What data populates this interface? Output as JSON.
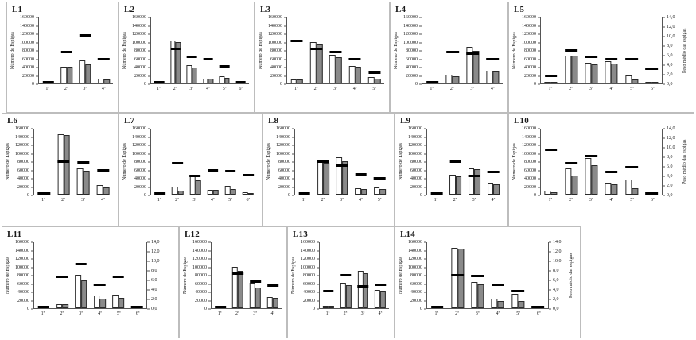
{
  "axes": {
    "left_label": "Número de Espigas",
    "right_label": "Peso médio das espigas",
    "left_ticks": [
      "160000",
      "140000",
      "120000",
      "100000",
      "80000",
      "60000",
      "40000",
      "20000",
      "0"
    ],
    "right_ticks": [
      "14,0",
      "12,0",
      "10,0",
      "8,0",
      "6,0",
      "4,0",
      "2,0",
      "0,0"
    ],
    "left_max": 160000,
    "right_max": 14
  },
  "colors": {
    "white_bar": "#ffffff",
    "gray_bar": "#8a8a8a",
    "bar_border": "#2a2a2a",
    "dash_marker": "#000000",
    "axis_line": "#555555",
    "panel_border": "#bdbdbd"
  },
  "chart_data": [
    {
      "id": "L1",
      "type": "bar",
      "title": "L1",
      "categories": [
        "1ª",
        "2ª",
        "3ª",
        "4ª"
      ],
      "ylim": [
        0,
        160000
      ],
      "y2lim": [
        0,
        14
      ],
      "right_axis": false,
      "right_label_shown": false,
      "series": [
        {
          "name": "white_bars",
          "values": [
            0,
            40000,
            55000,
            12000
          ]
        },
        {
          "name": "gray_bars",
          "values": [
            0,
            40000,
            46000,
            9000
          ]
        },
        {
          "name": "peso_medio_dash",
          "axis": "secondary",
          "values": [
            0.1,
            6.6,
            10.2,
            5.0
          ]
        }
      ]
    },
    {
      "id": "L2",
      "type": "bar",
      "title": "L2",
      "categories": [
        "1ª",
        "2ª",
        "3ª",
        "4ª",
        "5ª",
        "6ª"
      ],
      "ylim": [
        0,
        160000
      ],
      "y2lim": [
        0,
        14
      ],
      "right_axis": false,
      "right_label_shown": false,
      "series": [
        {
          "name": "white_bars",
          "values": [
            0,
            105000,
            44000,
            12000,
            17000,
            0
          ]
        },
        {
          "name": "gray_bars",
          "values": [
            0,
            100000,
            38000,
            11000,
            13000,
            0
          ]
        },
        {
          "name": "peso_medio_dash",
          "axis": "secondary",
          "values": [
            0.1,
            7.2,
            5.6,
            5.0,
            3.5,
            0.1
          ]
        }
      ]
    },
    {
      "id": "L3",
      "type": "bar",
      "title": "L3",
      "categories": [
        "1ª",
        "2ª",
        "3ª",
        "4ª",
        "5ª"
      ],
      "ylim": [
        0,
        160000
      ],
      "y2lim": [
        0,
        14
      ],
      "right_axis": false,
      "right_label_shown": false,
      "series": [
        {
          "name": "white_bars",
          "values": [
            10000,
            101000,
            70000,
            43000,
            15000
          ]
        },
        {
          "name": "gray_bars",
          "values": [
            9000,
            95000,
            63000,
            41000,
            12000
          ]
        },
        {
          "name": "peso_medio_dash",
          "axis": "secondary",
          "values": [
            8.9,
            7.2,
            6.6,
            5.0,
            2.2
          ]
        }
      ]
    },
    {
      "id": "L4",
      "type": "bar",
      "title": "L4",
      "categories": [
        "1ª",
        "2ª",
        "3ª",
        "4ª"
      ],
      "ylim": [
        0,
        160000
      ],
      "y2lim": [
        0,
        14
      ],
      "right_axis": false,
      "right_label_shown": false,
      "series": [
        {
          "name": "white_bars",
          "values": [
            0,
            22000,
            88000,
            31000
          ]
        },
        {
          "name": "gray_bars",
          "values": [
            0,
            17000,
            79000,
            29000
          ]
        },
        {
          "name": "peso_medio_dash",
          "axis": "secondary",
          "values": [
            0.2,
            6.5,
            6.2,
            5.0
          ]
        }
      ]
    },
    {
      "id": "L5",
      "type": "bar",
      "title": "L5",
      "categories": [
        "1ª",
        "2ª",
        "3ª",
        "4ª",
        "5ª",
        "6ª"
      ],
      "ylim": [
        0,
        160000
      ],
      "y2lim": [
        0,
        14
      ],
      "right_axis": true,
      "right_label_shown": true,
      "series": [
        {
          "name": "white_bars",
          "values": [
            4000,
            68000,
            50000,
            54000,
            19000,
            4000
          ]
        },
        {
          "name": "gray_bars",
          "values": [
            4000,
            68000,
            46000,
            48000,
            10000,
            4000
          ]
        },
        {
          "name": "peso_medio_dash",
          "axis": "secondary",
          "values": [
            1.5,
            6.9,
            5.6,
            5.1,
            5.0,
            3.1
          ]
        }
      ]
    },
    {
      "id": "L6",
      "type": "bar",
      "title": "L6",
      "categories": [
        "1ª",
        "2ª",
        "3ª",
        "4ª"
      ],
      "ylim": [
        0,
        160000
      ],
      "y2lim": [
        0,
        14
      ],
      "right_axis": false,
      "right_label_shown": false,
      "series": [
        {
          "name": "white_bars",
          "values": [
            0,
            146000,
            63000,
            24000
          ]
        },
        {
          "name": "gray_bars",
          "values": [
            0,
            144000,
            57000,
            18000
          ]
        },
        {
          "name": "peso_medio_dash",
          "axis": "secondary",
          "values": [
            0.1,
            7.0,
            6.7,
            5.0
          ]
        }
      ]
    },
    {
      "id": "L7",
      "type": "bar",
      "title": "L7",
      "categories": [
        "1ª",
        "2ª",
        "3ª",
        "4ª",
        "5ª",
        "6ª"
      ],
      "ylim": [
        0,
        160000
      ],
      "y2lim": [
        0,
        14
      ],
      "right_axis": false,
      "right_label_shown": false,
      "series": [
        {
          "name": "white_bars",
          "values": [
            0,
            19000,
            44000,
            12000,
            21000,
            6000
          ]
        },
        {
          "name": "gray_bars",
          "values": [
            0,
            10000,
            35000,
            11000,
            13000,
            3000
          ]
        },
        {
          "name": "peso_medio_dash",
          "axis": "secondary",
          "values": [
            0.1,
            6.5,
            3.9,
            5.1,
            4.9,
            4.0
          ]
        }
      ]
    },
    {
      "id": "L8",
      "type": "bar",
      "title": "L8",
      "categories": [
        "1ª",
        "2ª",
        "3ª",
        "4ª",
        "5ª"
      ],
      "ylim": [
        0,
        160000
      ],
      "y2lim": [
        0,
        14
      ],
      "right_axis": false,
      "right_label_shown": false,
      "series": [
        {
          "name": "white_bars",
          "values": [
            0,
            80000,
            90000,
            15000,
            17000
          ]
        },
        {
          "name": "gray_bars",
          "values": [
            0,
            78000,
            81000,
            14000,
            14000
          ]
        },
        {
          "name": "peso_medio_dash",
          "axis": "secondary",
          "values": [
            0.1,
            7.0,
            6.0,
            4.3,
            3.4
          ]
        }
      ]
    },
    {
      "id": "L9",
      "type": "bar",
      "title": "L9",
      "categories": [
        "1ª",
        "2ª",
        "3ª",
        "4ª"
      ],
      "ylim": [
        0,
        160000
      ],
      "y2lim": [
        0,
        14
      ],
      "right_axis": false,
      "right_label_shown": false,
      "series": [
        {
          "name": "white_bars",
          "values": [
            0,
            48000,
            64000,
            28000
          ]
        },
        {
          "name": "gray_bars",
          "values": [
            0,
            44000,
            61000,
            26000
          ]
        },
        {
          "name": "peso_medio_dash",
          "axis": "secondary",
          "values": [
            0.1,
            7.0,
            3.9,
            4.8
          ]
        }
      ]
    },
    {
      "id": "L10",
      "type": "bar",
      "title": "L10",
      "categories": [
        "1ª",
        "2ª",
        "3ª",
        "4ª",
        "5ª",
        "6ª"
      ],
      "ylim": [
        0,
        160000
      ],
      "y2lim": [
        0,
        14
      ],
      "right_axis": true,
      "right_label_shown": true,
      "series": [
        {
          "name": "white_bars",
          "values": [
            9000,
            63000,
            89000,
            28000,
            36000,
            0
          ]
        },
        {
          "name": "gray_bars",
          "values": [
            6000,
            46000,
            71000,
            26000,
            16000,
            0
          ]
        },
        {
          "name": "peso_medio_dash",
          "axis": "secondary",
          "values": [
            9.5,
            6.6,
            8.1,
            4.8,
            5.7,
            0.1
          ]
        }
      ]
    },
    {
      "id": "L11",
      "type": "bar",
      "title": "L11",
      "categories": [
        "1ª",
        "2ª",
        "3ª",
        "4ª",
        "5ª",
        "6ª"
      ],
      "ylim": [
        0,
        160000
      ],
      "y2lim": [
        0,
        14
      ],
      "right_axis": true,
      "right_label_shown": false,
      "series": [
        {
          "name": "white_bars",
          "values": [
            0,
            10000,
            81000,
            30000,
            33000,
            0
          ]
        },
        {
          "name": "gray_bars",
          "values": [
            0,
            9000,
            68000,
            24000,
            26000,
            0
          ]
        },
        {
          "name": "peso_medio_dash",
          "axis": "secondary",
          "values": [
            0.1,
            6.6,
            9.3,
            4.9,
            6.5,
            0.1
          ]
        }
      ]
    },
    {
      "id": "L12",
      "type": "bar",
      "title": "L12",
      "categories": [
        "1ª",
        "2ª",
        "3ª",
        "4ª"
      ],
      "ylim": [
        0,
        160000
      ],
      "y2lim": [
        0,
        14
      ],
      "right_axis": false,
      "right_label_shown": false,
      "series": [
        {
          "name": "white_bars",
          "values": [
            0,
            101000,
            61000,
            27000
          ]
        },
        {
          "name": "gray_bars",
          "values": [
            0,
            90000,
            51000,
            26000
          ]
        },
        {
          "name": "peso_medio_dash",
          "axis": "secondary",
          "values": [
            0.1,
            7.2,
            5.6,
            4.8
          ]
        }
      ]
    },
    {
      "id": "L13",
      "type": "bar",
      "title": "L13",
      "categories": [
        "1ª",
        "2ª",
        "3ª",
        "4ª"
      ],
      "ylim": [
        0,
        160000
      ],
      "y2lim": [
        0,
        14
      ],
      "right_axis": false,
      "right_label_shown": false,
      "series": [
        {
          "name": "white_bars",
          "values": [
            6000,
            61000,
            90000,
            45000
          ]
        },
        {
          "name": "gray_bars",
          "values": [
            5000,
            55000,
            84000,
            43000
          ]
        },
        {
          "name": "peso_medio_dash",
          "axis": "secondary",
          "values": [
            3.6,
            7.0,
            4.6,
            4.9
          ]
        }
      ]
    },
    {
      "id": "L14",
      "type": "bar",
      "title": "L14",
      "categories": [
        "1ª",
        "2ª",
        "3ª",
        "4ª",
        "5ª",
        "6ª"
      ],
      "ylim": [
        0,
        160000
      ],
      "y2lim": [
        0,
        14
      ],
      "right_axis": true,
      "right_label_shown": true,
      "series": [
        {
          "name": "white_bars",
          "values": [
            0,
            146000,
            63000,
            23000,
            35000,
            0
          ]
        },
        {
          "name": "gray_bars",
          "values": [
            0,
            144000,
            57000,
            17000,
            18000,
            0
          ]
        },
        {
          "name": "peso_medio_dash",
          "axis": "secondary",
          "values": [
            0.1,
            7.0,
            6.7,
            4.9,
            3.5,
            0.1
          ]
        }
      ]
    }
  ]
}
